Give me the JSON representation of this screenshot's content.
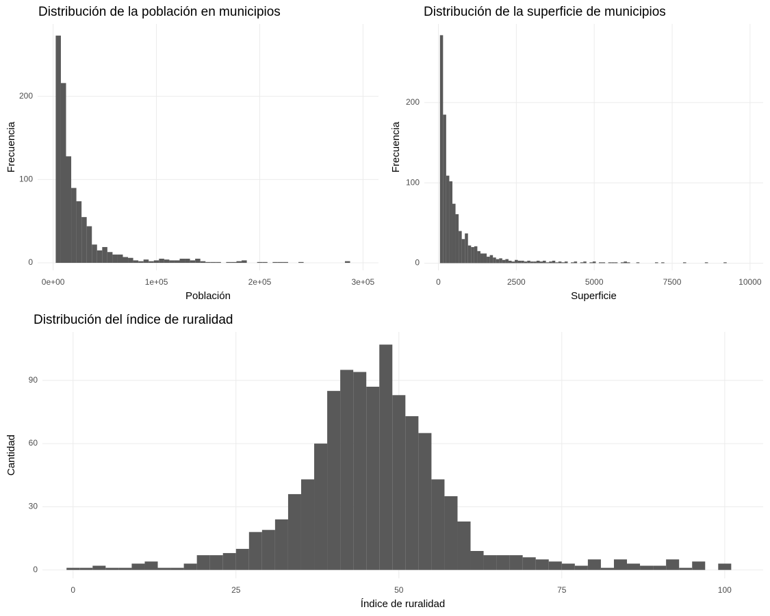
{
  "chart_data": [
    {
      "type": "histogram",
      "title": "Distribución de la población en municipios",
      "xlabel": "Población",
      "ylabel": "Frecuencia",
      "color": "#595959",
      "grid": true,
      "bins": [
        2500,
        7500,
        12500,
        17500,
        22500,
        27500,
        32500,
        37500,
        42500,
        47500,
        52500,
        57500,
        62500,
        67500,
        72500,
        77500,
        82500,
        87500,
        92500,
        97500,
        102500,
        107500,
        112500,
        117500,
        122500,
        127500,
        132500,
        137500,
        142500,
        147500,
        152500,
        157500,
        162500,
        167500,
        172500,
        177500,
        182500,
        187500,
        192500,
        197500,
        202500,
        207500,
        212500,
        217500,
        222500,
        227500,
        232500,
        237500,
        242500,
        247500,
        252500,
        257500,
        262500,
        267500,
        272500,
        277500,
        282500,
        287500
      ],
      "counts": [
        273,
        216,
        128,
        90,
        74,
        55,
        44,
        22,
        15,
        19,
        13,
        10,
        10,
        7,
        6,
        3,
        2,
        4,
        2,
        3,
        5,
        4,
        3,
        3,
        5,
        5,
        3,
        5,
        2,
        1,
        1,
        1,
        0,
        1,
        1,
        2,
        3,
        0,
        0,
        1,
        1,
        0,
        1,
        1,
        1,
        0,
        0,
        1,
        0,
        0,
        0,
        0,
        0,
        0,
        0,
        0,
        2
      ],
      "xlim": [
        -15000,
        315000
      ],
      "ylim": [
        -9,
        287
      ],
      "xticks": [
        {
          "value": 0,
          "label": "0e+00"
        },
        {
          "value": 100000,
          "label": "1e+05"
        },
        {
          "value": 200000,
          "label": "2e+05"
        },
        {
          "value": 300000,
          "label": "3e+05"
        }
      ],
      "yticks": [
        0,
        100,
        200
      ]
    },
    {
      "type": "histogram",
      "title": "Distribución de la superficie de municipios",
      "xlabel": "Superficie",
      "ylabel": "Frecuencia",
      "color": "#595959",
      "grid": true,
      "bins": [
        50,
        150,
        250,
        350,
        450,
        550,
        650,
        750,
        850,
        950,
        1050,
        1150,
        1250,
        1350,
        1450,
        1550,
        1650,
        1750,
        1850,
        1950,
        2050,
        2150,
        2250,
        2350,
        2450,
        2550,
        2650,
        2750,
        2850,
        2950,
        3050,
        3150,
        3250,
        3350,
        3450,
        3550,
        3650,
        3750,
        3850,
        3950,
        4050,
        4150,
        4250,
        4350,
        4450,
        4550,
        4650,
        4750,
        4850,
        4950,
        5050,
        5150,
        5250,
        5350,
        5450,
        5550,
        5650,
        5750,
        5850,
        5950,
        6050,
        6150,
        6250,
        6350,
        6450,
        6550,
        6650,
        6750,
        6850,
        6950,
        7050,
        7150,
        7250,
        7350,
        7450,
        7550,
        7650,
        7750,
        7850,
        7950,
        8050,
        8150,
        8250,
        8350,
        8450,
        8550,
        8650,
        8750,
        8850,
        8950,
        9050,
        9150,
        9250
      ],
      "counts": [
        284,
        185,
        109,
        102,
        74,
        61,
        40,
        30,
        37,
        22,
        20,
        21,
        15,
        12,
        12,
        8,
        10,
        7,
        5,
        6,
        4,
        5,
        3,
        2,
        4,
        3,
        3,
        2,
        3,
        2,
        2,
        3,
        2,
        3,
        1,
        2,
        3,
        1,
        2,
        1,
        2,
        0,
        1,
        2,
        0,
        1,
        2,
        0,
        1,
        2,
        0,
        1,
        1,
        0,
        1,
        1,
        1,
        0,
        1,
        2,
        1,
        0,
        0,
        1,
        0,
        0,
        0,
        0,
        0,
        1,
        0,
        1,
        0,
        0,
        0,
        0,
        0,
        0,
        1,
        0,
        0,
        0,
        0,
        0,
        0,
        1,
        0,
        0,
        0,
        0,
        0,
        1
      ],
      "xlim": [
        -450,
        10420
      ],
      "ylim": [
        -9,
        298
      ],
      "xticks": [
        0,
        2500,
        5000,
        7500,
        10000
      ],
      "yticks": [
        0,
        100,
        200
      ]
    },
    {
      "type": "histogram",
      "title": "Distribución del índice de ruralidad",
      "xlabel": "Índice de ruralidad",
      "ylabel": "Cantidad",
      "color": "#595959",
      "grid": true,
      "bins": [
        -1,
        1,
        3,
        5,
        7,
        9,
        11,
        13,
        15,
        17,
        19,
        21,
        23,
        25,
        27,
        29,
        31,
        33,
        35,
        37,
        39,
        41,
        43,
        45,
        47,
        49,
        51,
        53,
        55,
        57,
        59,
        61,
        63,
        65,
        67,
        69,
        71,
        73,
        75,
        77,
        79,
        81,
        83,
        85,
        87,
        89,
        91,
        93,
        95,
        97,
        99,
        101
      ],
      "counts": [
        1,
        1,
        2,
        1,
        1,
        3,
        4,
        1,
        1,
        3,
        7,
        7,
        8,
        10,
        18,
        19,
        24,
        36,
        43,
        60,
        85,
        95,
        94,
        87,
        107,
        83,
        73,
        65,
        43,
        35,
        23,
        9,
        7,
        7,
        7,
        6,
        5,
        4,
        3,
        2,
        5,
        1,
        5,
        3,
        2,
        2,
        5,
        1,
        4,
        0,
        3
      ],
      "xlim": [
        -4.7,
        105.9
      ],
      "ylim": [
        -4,
        113
      ],
      "xticks": [
        0,
        25,
        50,
        75,
        100
      ],
      "yticks": [
        0,
        30,
        60,
        90
      ]
    }
  ]
}
